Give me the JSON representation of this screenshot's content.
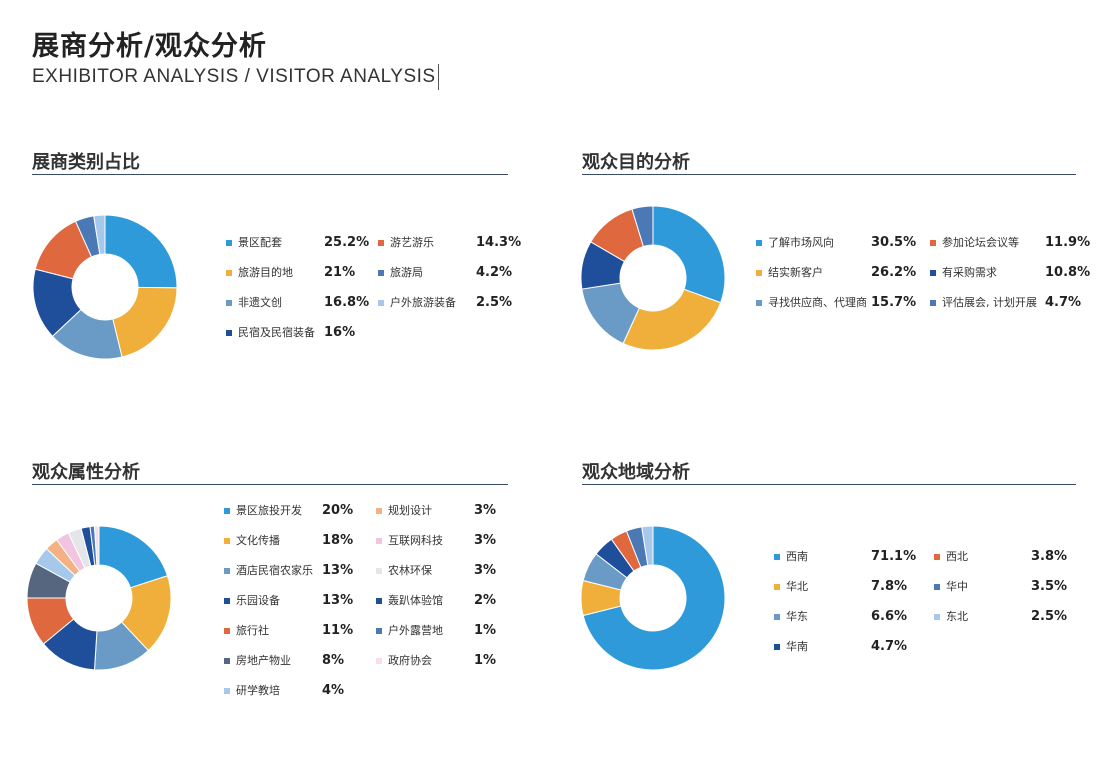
{
  "header": {
    "title": "展商分析/观众分析",
    "subtitle": "EXHIBITOR ANALYSIS / VISITOR ANALYSIS"
  },
  "chart_data": [
    {
      "type": "pie",
      "title": "展商类别占比",
      "series": [
        {
          "name": "景区配套",
          "value": 25.2,
          "label": "25.2%",
          "color": "#2e9ad9"
        },
        {
          "name": "旅游目的地",
          "value": 21,
          "label": "21%",
          "color": "#f0ae3a"
        },
        {
          "name": "非遗文创",
          "value": 16.8,
          "label": "16.8%",
          "color": "#6a9bc6"
        },
        {
          "name": "民宿及民宿装备",
          "value": 16,
          "label": "16%",
          "color": "#1f4e9a"
        },
        {
          "name": "游艺游乐",
          "value": 14.3,
          "label": "14.3%",
          "color": "#e0683f"
        },
        {
          "name": "旅游局",
          "value": 4.2,
          "label": "4.2%",
          "color": "#4b79b6"
        },
        {
          "name": "户外旅游装备",
          "value": 2.5,
          "label": "2.5%",
          "color": "#a6c8ea"
        }
      ]
    },
    {
      "type": "pie",
      "title": "观众目的分析",
      "series": [
        {
          "name": "了解市场风向",
          "value": 30.5,
          "label": "30.5%",
          "color": "#2e9ad9"
        },
        {
          "name": "结实新客户",
          "value": 26.2,
          "label": "26.2%",
          "color": "#f0ae3a"
        },
        {
          "name": "寻找供应商、代理商",
          "value": 15.7,
          "label": "15.7%",
          "color": "#6a9bc6"
        },
        {
          "name": "有采购需求",
          "value": 10.8,
          "label": "10.8%",
          "color": "#1f4e9a"
        },
        {
          "name": "参加论坛会议等",
          "value": 11.9,
          "label": "11.9%",
          "color": "#e0683f"
        },
        {
          "name": "评估展会, 计划开展",
          "value": 4.7,
          "label": "4.7%",
          "color": "#4b79b6"
        }
      ]
    },
    {
      "type": "pie",
      "title": "观众属性分析",
      "series": [
        {
          "name": "景区旅投开发",
          "value": 20,
          "label": "20%",
          "color": "#2e9ad9"
        },
        {
          "name": "文化传播",
          "value": 18,
          "label": "18%",
          "color": "#f0ae3a"
        },
        {
          "name": "酒店民宿农家乐",
          "value": 13,
          "label": "13%",
          "color": "#6a9bc6"
        },
        {
          "name": "乐园设备",
          "value": 13,
          "label": "13%",
          "color": "#1f4e9a"
        },
        {
          "name": "旅行社",
          "value": 11,
          "label": "11%",
          "color": "#e0683f"
        },
        {
          "name": "房地产物业",
          "value": 8,
          "label": "8%",
          "color": "#55667e"
        },
        {
          "name": "研学教培",
          "value": 4,
          "label": "4%",
          "color": "#a6c8ea"
        },
        {
          "name": "规划设计",
          "value": 3,
          "label": "3%",
          "color": "#f4b183"
        },
        {
          "name": "互联网科技",
          "value": 3,
          "label": "3%",
          "color": "#f2c4e0"
        },
        {
          "name": "农林环保",
          "value": 3,
          "label": "3%",
          "color": "#e4e6ea"
        },
        {
          "name": "轰趴体验馆",
          "value": 2,
          "label": "2%",
          "color": "#1f4e9a"
        },
        {
          "name": "户外露营地",
          "value": 1,
          "label": "1%",
          "color": "#4b79b6"
        },
        {
          "name": "政府协会",
          "value": 1,
          "label": "1%",
          "color": "#f6dfe9"
        }
      ]
    },
    {
      "type": "pie",
      "title": "观众地域分析",
      "series": [
        {
          "name": "西南",
          "value": 71.1,
          "label": "71.1%",
          "color": "#2e9ad9"
        },
        {
          "name": "华北",
          "value": 7.8,
          "label": "7.8%",
          "color": "#f0ae3a"
        },
        {
          "name": "华东",
          "value": 6.6,
          "label": "6.6%",
          "color": "#6a9bc6"
        },
        {
          "name": "华南",
          "value": 4.7,
          "label": "4.7%",
          "color": "#1f4e9a"
        },
        {
          "name": "西北",
          "value": 3.8,
          "label": "3.8%",
          "color": "#e0683f"
        },
        {
          "name": "华中",
          "value": 3.5,
          "label": "3.5%",
          "color": "#4b79b6"
        },
        {
          "name": "东北",
          "value": 2.5,
          "label": "2.5%",
          "color": "#a6c8ea"
        }
      ]
    }
  ]
}
